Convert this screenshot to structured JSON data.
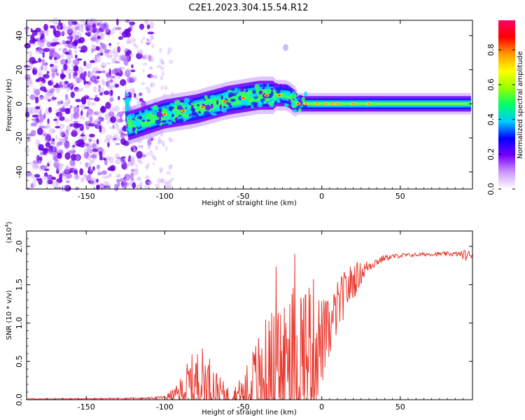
{
  "figure": {
    "title": "C2E1.2023.304.15.54.R12"
  },
  "chart_data": [
    {
      "type": "heatmap",
      "title": "",
      "xlabel": "Height of straight line (km)",
      "ylabel": "Frequency (Hz)",
      "xlim": [
        -188,
        96
      ],
      "ylim": [
        -50,
        49
      ],
      "xticks": [
        -150,
        -100,
        -50,
        0,
        50
      ],
      "yticks": [
        -40,
        -20,
        0,
        20,
        40
      ],
      "colorbar": {
        "label": "Normalized spectral amplitude",
        "range": [
          0,
          0.97
        ],
        "ticks": [
          0.0,
          0.2,
          0.4,
          0.6,
          0.8
        ],
        "colormap": [
          "#ffffff",
          "#cc99ff",
          "#7700ff",
          "#0000ff",
          "#00ccff",
          "#00ff66",
          "#99ff00",
          "#ffff00",
          "#ff9900",
          "#ff0000",
          "#ff0066"
        ]
      },
      "features": {
        "noise_region_x": [
          -188,
          -120
        ],
        "signal_onset_x": -125,
        "signal_centerline": [
          [
            -123,
            -13
          ],
          [
            -100,
            -6
          ],
          [
            -80,
            -3
          ],
          [
            -60,
            2
          ],
          [
            -40,
            5
          ],
          [
            -22,
            5
          ],
          [
            -15,
            0
          ],
          [
            0,
            0
          ],
          [
            96,
            0
          ]
        ]
      }
    },
    {
      "type": "line",
      "title": "",
      "xlabel": "Height of straight line (km)",
      "ylabel": "SNR (10 * v/v)",
      "yscale_label": "(x10",
      "yscale_exp": "4",
      "xlim": [
        -188,
        96
      ],
      "ylim": [
        0,
        22000
      ],
      "xticks": [
        -150,
        -100,
        -50,
        0,
        50
      ],
      "yticks": [
        0,
        5000,
        10000,
        15000,
        20000
      ],
      "ytick_labels": [
        "0.0",
        "0.5",
        "1.0",
        "1.5",
        "2.0"
      ],
      "color": "#e8392f",
      "envelope": {
        "x": [
          -188,
          -140,
          -110,
          -100,
          -92,
          -85,
          -80,
          -75,
          -70,
          -65,
          -58,
          -50,
          -45,
          -40,
          -35,
          -30,
          -25,
          -20,
          -15,
          -10,
          -5,
          0,
          5,
          10,
          15,
          20,
          25,
          30,
          40,
          50,
          60,
          70,
          80,
          88,
          92,
          96
        ],
        "base": [
          100,
          120,
          200,
          300,
          700,
          1800,
          2200,
          2500,
          1800,
          1000,
          500,
          800,
          1500,
          2000,
          2500,
          3000,
          3500,
          4000,
          5000,
          6000,
          7000,
          7500,
          9000,
          12000,
          14000,
          15500,
          16500,
          17500,
          18500,
          18800,
          18900,
          19000,
          19000,
          19000,
          18800,
          18900
        ],
        "amp": [
          50,
          60,
          100,
          250,
          1200,
          3500,
          4500,
          4500,
          3500,
          2000,
          800,
          2500,
          5000,
          7000,
          8500,
          9500,
          10500,
          11000,
          12000,
          11000,
          9000,
          6000,
          4000,
          3500,
          3000,
          2500,
          1500,
          800,
          400,
          300,
          250,
          250,
          300,
          300,
          900,
          300
        ]
      }
    }
  ]
}
